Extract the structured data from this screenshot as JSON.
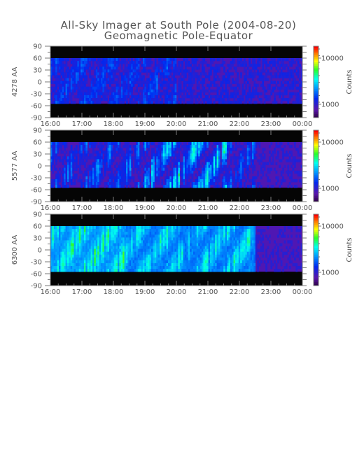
{
  "title": "All-Sky Imager at South Pole (2004-08-20)",
  "subtitle": "Geomagnetic Pole-Equator",
  "chart_data": [
    {
      "type": "heatmap",
      "ylabel": "4278 AA",
      "colorbar_label": "Counts",
      "colorbar_ticks": [
        "10000",
        "1000"
      ],
      "x_ticks": [
        "16:00",
        "17:00",
        "18:00",
        "19:00",
        "20:00",
        "21:00",
        "22:00",
        "23:00",
        "00:00"
      ],
      "y_ticks": [
        "90",
        "60",
        "30",
        "0",
        "-30",
        "-60",
        "-90"
      ],
      "xlim": [
        "16:00",
        "00:00"
      ],
      "ylim": [
        -90,
        90
      ],
      "data_lat_range": [
        -55,
        60
      ],
      "intensity": "mostly low background with scattered moderate streaks, strongest 16:30-20:00"
    },
    {
      "type": "heatmap",
      "ylabel": "5577 AA",
      "colorbar_label": "Counts",
      "colorbar_ticks": [
        "10000",
        "1000"
      ],
      "x_ticks": [
        "16:00",
        "17:00",
        "18:00",
        "19:00",
        "20:00",
        "21:00",
        "22:00",
        "23:00",
        "00:00"
      ],
      "y_ticks": [
        "90",
        "60",
        "30",
        "0",
        "-30",
        "-60",
        "-90"
      ],
      "xlim": [
        "16:00",
        "00:00"
      ],
      "ylim": [
        -90,
        90
      ],
      "data_lat_range": [
        -55,
        60
      ],
      "intensity": "bright bands 16:00-22:30, peak near 19:00-21:30"
    },
    {
      "type": "heatmap",
      "ylabel": "6300 AA",
      "colorbar_label": "Counts",
      "colorbar_ticks": [
        "10000",
        "1000"
      ],
      "x_ticks": [
        "16:00",
        "17:00",
        "18:00",
        "19:00",
        "20:00",
        "21:00",
        "22:00",
        "23:00",
        "00:00"
      ],
      "y_ticks": [
        "90",
        "60",
        "30",
        "0",
        "-30",
        "-60",
        "-90"
      ],
      "xlim": [
        "16:00",
        "00:00"
      ],
      "ylim": [
        -90,
        90
      ],
      "data_lat_range": [
        -55,
        60
      ],
      "intensity": "broad high emission 16:00-22:30, strongest near 17:00-20:00"
    }
  ]
}
